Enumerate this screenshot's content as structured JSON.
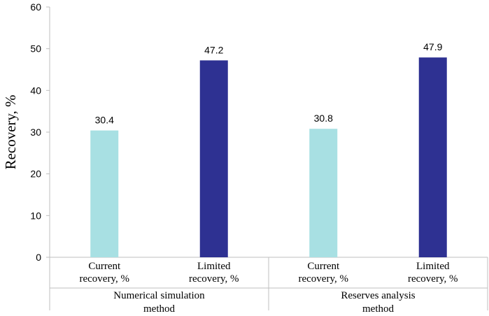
{
  "chart_data": {
    "type": "bar",
    "title": "",
    "ylabel": "Recovery, %",
    "xlabel": "",
    "ylim": [
      0,
      60
    ],
    "yticks": [
      0,
      10,
      20,
      30,
      40,
      50,
      60
    ],
    "grid": false,
    "legend": "none",
    "groups": [
      {
        "name_lines": [
          "Numerical simulation",
          "method"
        ],
        "bars": [
          {
            "label_lines": [
              "Current",
              "recovery, %"
            ],
            "value": 30.4,
            "value_label": "30.4",
            "color": "#a8e0e3"
          },
          {
            "label_lines": [
              "Limited",
              "recovery, %"
            ],
            "value": 47.2,
            "value_label": "47.2",
            "color": "#2e3192"
          }
        ]
      },
      {
        "name_lines": [
          "Reserves analysis",
          "method"
        ],
        "bars": [
          {
            "label_lines": [
              "Current",
              "recovery, %"
            ],
            "value": 30.8,
            "value_label": "30.8",
            "color": "#a8e0e3"
          },
          {
            "label_lines": [
              "Limited",
              "recovery, %"
            ],
            "value": 47.9,
            "value_label": "47.9",
            "color": "#2e3192"
          }
        ]
      }
    ]
  }
}
